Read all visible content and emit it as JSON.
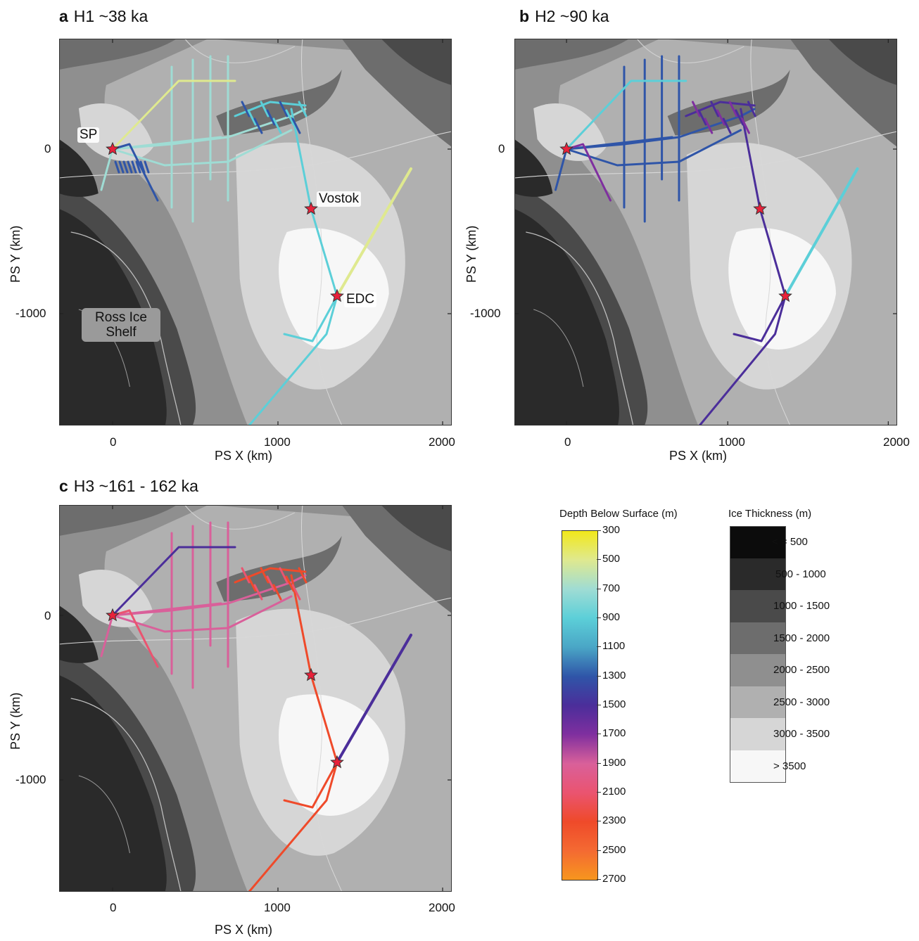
{
  "panels": [
    {
      "letter": "a",
      "title": "H1 ~38 ka",
      "palette": "h1"
    },
    {
      "letter": "b",
      "title": "H2 ~90 ka",
      "palette": "h2"
    },
    {
      "letter": "c",
      "title": "H3 ~161 - 162 ka",
      "palette": "h3"
    }
  ],
  "axes": {
    "xlabel": "PS X (km)",
    "ylabel": "PS Y (km)",
    "xticks": [
      "0",
      "1000",
      "2000"
    ],
    "yticks": [
      "0",
      "-1000"
    ]
  },
  "sites": {
    "sp": "SP",
    "vostok": "Vostok",
    "edc": "EDC"
  },
  "ross_ice_shelf": "Ross Ice Shelf",
  "depth_legend": {
    "title": "Depth Below Surface (m)",
    "labels": [
      "300",
      "500",
      "700",
      "900",
      "1100",
      "1300",
      "1500",
      "1700",
      "1900",
      "2100",
      "2300",
      "2500",
      "2700"
    ],
    "colors": [
      "#f2e81a",
      "#dfe98f",
      "#9fdcd4",
      "#5ccfd8",
      "#4aa6c6",
      "#2f55a8",
      "#4b2e9a",
      "#7f2f9f",
      "#d9609a",
      "#ea5470",
      "#ef4a2a",
      "#f46a32",
      "#f7961e"
    ]
  },
  "ice_legend": {
    "title": "Ice Thickness (m)",
    "classes": [
      {
        "label": "< = 500",
        "color": "#0c0c0c"
      },
      {
        "label": "500 - 1000",
        "color": "#2a2a2a"
      },
      {
        "label": "1000 - 1500",
        "color": "#4a4a4a"
      },
      {
        "label": "1500 - 2000",
        "color": "#6d6d6d"
      },
      {
        "label": "2000 - 2500",
        "color": "#8f8f8f"
      },
      {
        "label": "2500 - 3000",
        "color": "#b0b0b0"
      },
      {
        "label": "3000 - 3500",
        "color": "#d6d6d6"
      },
      {
        "label": "> 3500",
        "color": "#f7f7f7"
      }
    ]
  }
}
